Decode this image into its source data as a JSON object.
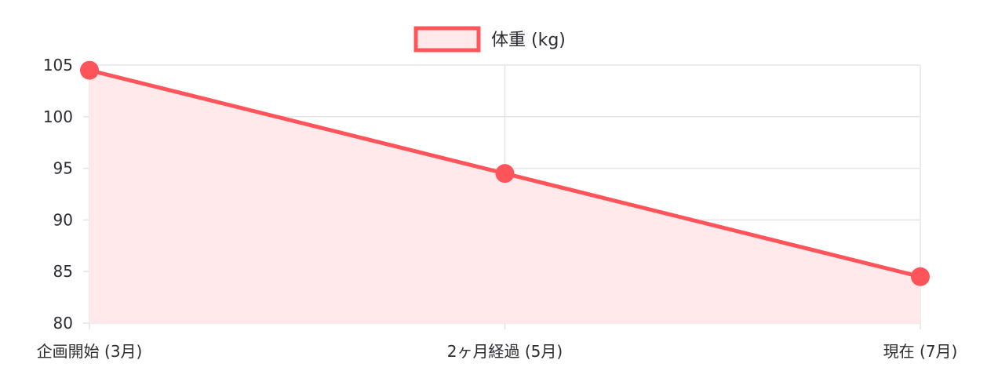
{
  "chart_data": {
    "type": "area",
    "categories": [
      "企画開始 (3月)",
      "2ヶ月経過 (5月)",
      "現在 (7月)"
    ],
    "series": [
      {
        "name": "体重 (kg)",
        "values": [
          104.5,
          94.5,
          84.5
        ],
        "color": "#ff5459",
        "fill": "#ffe9ea"
      }
    ],
    "ylim": [
      80,
      105
    ],
    "yticks": [
      80,
      85,
      90,
      95,
      100,
      105
    ],
    "grid": true,
    "legend": "top-center",
    "colors": {
      "grid": "#e5e5e5",
      "tick_text": "#2b2b33"
    }
  }
}
